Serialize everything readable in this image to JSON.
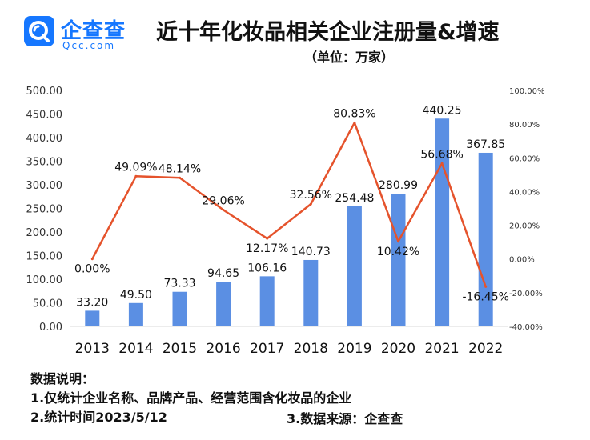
{
  "brand": {
    "logo_cn": "企查查",
    "logo_en": "Qcc.com",
    "colors": {
      "logo": "#1677ff",
      "bar": "#5b8fe3",
      "line": "#e5532c"
    }
  },
  "chart_data": {
    "type": "bar",
    "title": "近十年化妆品相关企业注册量&增速",
    "subtitle": "（单位：万家）",
    "categories": [
      "2013",
      "2014",
      "2015",
      "2016",
      "2017",
      "2018",
      "2019",
      "2020",
      "2021",
      "2022"
    ],
    "series": [
      {
        "type": "bar",
        "axis": "left",
        "values": [
          33.2,
          49.5,
          73.33,
          94.65,
          106.16,
          140.73,
          254.48,
          280.99,
          440.25,
          367.85
        ],
        "labels": [
          "33.20",
          "49.50",
          "73.33",
          "94.65",
          "106.16",
          "140.73",
          "254.48",
          "280.99",
          "440.25",
          "367.85"
        ]
      },
      {
        "type": "line",
        "axis": "right",
        "values": [
          0.0,
          49.09,
          48.14,
          29.06,
          12.17,
          32.56,
          80.83,
          10.42,
          56.68,
          -16.45
        ],
        "labels": [
          "0.00%",
          "49.09%",
          "48.14%",
          "29.06%",
          "12.17%",
          "32.56%",
          "80.83%",
          "10.42%",
          "56.68%",
          "-16.45%"
        ]
      }
    ],
    "y_left": {
      "range": [
        0,
        500
      ],
      "ticks": [
        "0.00",
        "50.00",
        "100.00",
        "150.00",
        "200.00",
        "250.00",
        "300.00",
        "350.00",
        "400.00",
        "450.00",
        "500.00"
      ]
    },
    "y_right": {
      "range": [
        -40,
        100
      ],
      "ticks": [
        "-40.00%",
        "-20.00%",
        "0.00%",
        "20.00%",
        "40.00%",
        "60.00%",
        "80.00%",
        "100.00%"
      ]
    },
    "grid": false,
    "legend": "none"
  },
  "notes": {
    "heading": "数据说明：",
    "line1": "1.仅统计企业名称、品牌产品、经营范围含化妆品的企业",
    "line2": "2.统计时间2023/5/12",
    "line3": "3.数据来源：企查查"
  }
}
